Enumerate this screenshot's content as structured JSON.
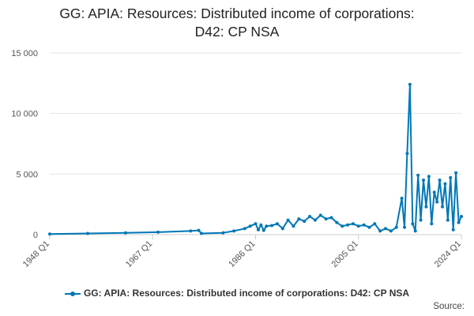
{
  "chart_data": {
    "type": "line",
    "title": "GG: APIA: Resources: Distributed income of corporations:",
    "title_line2": "D42: CP NSA",
    "xlabel": "",
    "ylabel": "",
    "ylim": [
      0,
      15000
    ],
    "yticks": [
      0,
      5000,
      10000,
      15000
    ],
    "ytick_labels": [
      "0",
      "5 000",
      "10 000",
      "15 000"
    ],
    "xlim": [
      1948,
      2024
    ],
    "xticks": [
      1948,
      1967,
      1986,
      2005,
      2024
    ],
    "xtick_labels": [
      "1948 Q1",
      "1967 Q1",
      "1986 Q1",
      "2005 Q1",
      "2024 Q1"
    ],
    "grid": true,
    "legend_position": "bottom",
    "series": [
      {
        "name": "GG: APIA: Resources: Distributed income of corporations: D42: CP NSA",
        "color": "#0077b6",
        "x": [
          1948,
          1955,
          1962,
          1968,
          1974,
          1975.5,
          1976,
          1980,
          1982,
          1984,
          1985,
          1986,
          1986.5,
          1987,
          1987.5,
          1988,
          1989,
          1990,
          1991,
          1992,
          1993,
          1994,
          1995,
          1996,
          1997,
          1998,
          1999,
          2000,
          2001,
          2002,
          2003,
          2004,
          2005,
          2006,
          2007,
          2008,
          2009,
          2010,
          2011,
          2012,
          2013,
          2013.5,
          2014,
          2014.5,
          2015,
          2015.5,
          2016,
          2016.5,
          2017,
          2017.5,
          2018,
          2018.5,
          2019,
          2019.5,
          2020,
          2020.5,
          2021,
          2021.5,
          2022,
          2022.5,
          2023,
          2023.5,
          2024
        ],
        "y": [
          50,
          100,
          150,
          200,
          300,
          350,
          100,
          150,
          300,
          500,
          700,
          900,
          400,
          800,
          350,
          700,
          750,
          900,
          500,
          1200,
          700,
          1300,
          1100,
          1500,
          1200,
          1600,
          1300,
          1400,
          1000,
          700,
          800,
          900,
          700,
          800,
          600,
          900,
          300,
          500,
          300,
          600,
          3000,
          600,
          6700,
          12400,
          900,
          300,
          4900,
          1200,
          4500,
          2300,
          4800,
          900,
          3500,
          2700,
          4500,
          2300,
          4200,
          1200,
          4700,
          400,
          5100,
          1000,
          1500
        ]
      }
    ]
  },
  "source_label": "Source:"
}
